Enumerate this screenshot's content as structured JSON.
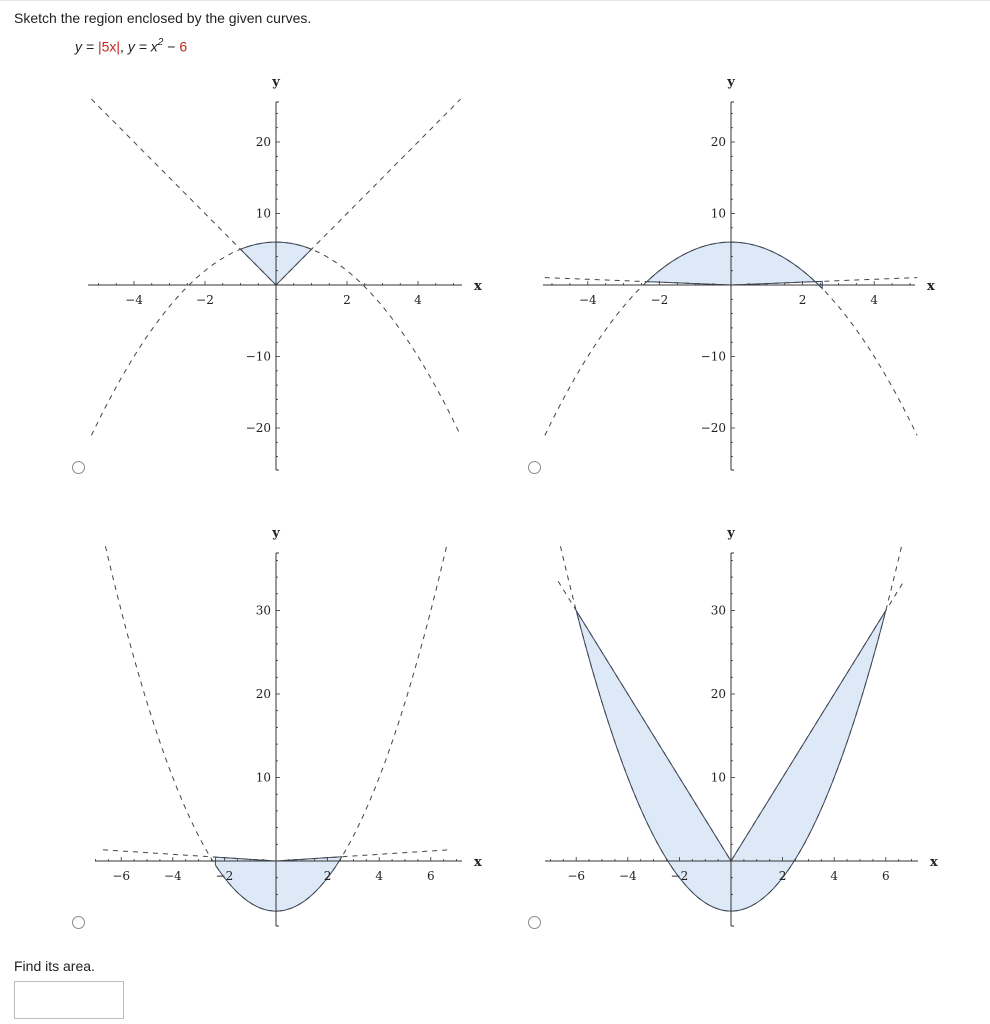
{
  "question": {
    "prompt": "Sketch the region enclosed by the given curves.",
    "equation": {
      "y1_lhs": "y = ",
      "y1_rhs": "|5x|",
      "sep": ", ",
      "y2_lhs": "y = x",
      "y2_exp": "2",
      "y2_minus": " − ",
      "y2_const": "6"
    },
    "find_label": "Find its area.",
    "answer_value": ""
  },
  "options": [
    {
      "id": "A",
      "selected": false,
      "x_axis_label": "x",
      "y_axis_label": "y",
      "x_ticks": [
        "-4",
        "-2",
        "2",
        "4"
      ],
      "y_ticks": [
        "20",
        "10",
        "-10",
        "-20"
      ],
      "region_color": "#dde9f7"
    },
    {
      "id": "B",
      "selected": false,
      "x_axis_label": "x",
      "y_axis_label": "y",
      "x_ticks": [
        "-4",
        "-2",
        "2",
        "4"
      ],
      "y_ticks": [
        "20",
        "10",
        "-10",
        "-20"
      ],
      "region_color": "#dde9f7"
    },
    {
      "id": "C",
      "selected": false,
      "x_axis_label": "x",
      "y_axis_label": "y",
      "x_ticks": [
        "-6",
        "-4",
        "-2",
        "2",
        "4",
        "6"
      ],
      "y_ticks": [
        "30",
        "20",
        "10"
      ],
      "region_color": "#dde9f7"
    },
    {
      "id": "D",
      "selected": false,
      "x_axis_label": "x",
      "y_axis_label": "y",
      "x_ticks": [
        "-6",
        "-4",
        "-2",
        "2",
        "4",
        "6"
      ],
      "y_ticks": [
        "30",
        "20",
        "10"
      ],
      "region_color": "#dde9f7"
    }
  ],
  "chart_data": [
    {
      "type": "line",
      "option": "A",
      "xlim": [
        -5,
        5
      ],
      "ylim": [
        -25,
        25
      ],
      "series": [
        {
          "curve": "y = |5x|",
          "style": "dashed",
          "x": [
            -5,
            5
          ]
        },
        {
          "curve": "y = -x^2 + 6",
          "style": "dashed",
          "x": [
            -5,
            5
          ]
        }
      ],
      "shaded_region": {
        "between": [
          "y = |5x|",
          "y = -x^2 + 6"
        ],
        "x_range": [
          -1,
          1
        ]
      }
    },
    {
      "type": "line",
      "option": "B",
      "xlim": [
        -5,
        5
      ],
      "ylim": [
        -25,
        25
      ],
      "series": [
        {
          "curve": "y = |x|/5",
          "style": "dashed",
          "x": [
            -5,
            5
          ]
        },
        {
          "curve": "y = -x^2 + 6",
          "style": "dashed",
          "x": [
            -5,
            5
          ]
        }
      ],
      "shaded_region": {
        "between": [
          "y = |x|/5",
          "y = -x^2 + 6"
        ],
        "x_range": [
          -2.35,
          2.55
        ]
      }
    },
    {
      "type": "line",
      "option": "C",
      "xlim": [
        -7,
        7
      ],
      "ylim": [
        -6,
        37
      ],
      "series": [
        {
          "curve": "y = |x|/5",
          "style": "dashed",
          "x": [
            -7,
            7
          ]
        },
        {
          "curve": "y = x^2 - 6",
          "style": "dashed",
          "x": [
            -7,
            7
          ]
        }
      ],
      "shaded_region": {
        "between": [
          "y = |x|/5",
          "y = x^2 - 6"
        ],
        "x_range": [
          -2.35,
          2.55
        ]
      }
    },
    {
      "type": "line",
      "option": "D",
      "xlim": [
        -7,
        7
      ],
      "ylim": [
        -6,
        37
      ],
      "series": [
        {
          "curve": "y = |5x|",
          "style": "dashed",
          "x": [
            -7,
            7
          ]
        },
        {
          "curve": "y = x^2 - 6",
          "style": "dashed",
          "x": [
            -7,
            7
          ]
        }
      ],
      "shaded_region": {
        "between": [
          "y = |5x|",
          "y = x^2 - 6"
        ],
        "x_range": [
          -6,
          6
        ]
      }
    }
  ]
}
